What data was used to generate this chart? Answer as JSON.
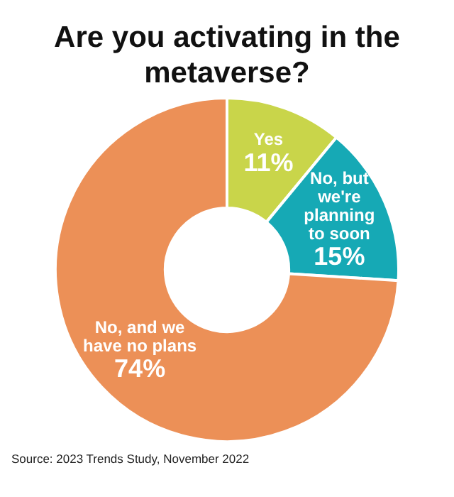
{
  "chart_data": {
    "type": "donut",
    "title": "Are you activating in the metaverse?",
    "categories": [
      "Yes",
      "No, but we're planning to soon",
      "No, and we have no plans"
    ],
    "values": [
      11,
      15,
      74
    ],
    "colors": [
      "#c9d54a",
      "#16a9b5",
      "#ec9057"
    ],
    "value_labels": [
      "11%",
      "15%",
      "74%"
    ],
    "legend": false,
    "annotations": [
      "Source: 2023 Trends Study, November 2022"
    ]
  }
}
